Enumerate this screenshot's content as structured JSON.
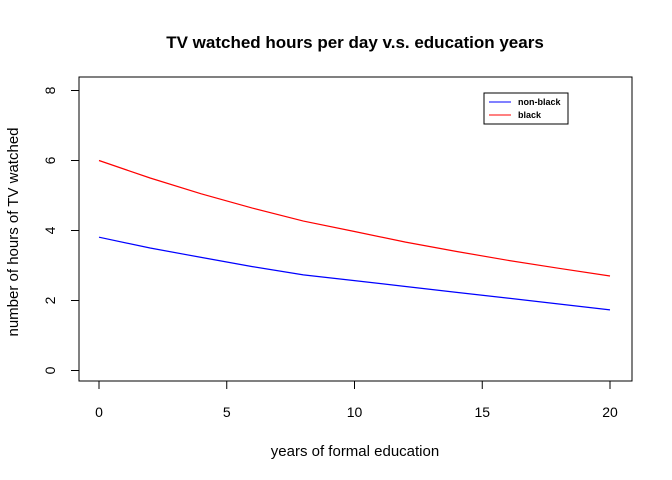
{
  "chart_data": {
    "type": "line",
    "title": "TV watched hours per day v.s. education years",
    "xlabel": "years of formal education",
    "ylabel": "number of hours of TV watched",
    "xlim": [
      0,
      20
    ],
    "ylim": [
      0,
      8
    ],
    "xticks": [
      0,
      5,
      10,
      15,
      20
    ],
    "yticks": [
      0,
      2,
      4,
      6,
      8
    ],
    "grid": false,
    "legend_position": "top-right",
    "series": [
      {
        "name": "non-black",
        "color": "#0000ff",
        "x": [
          0,
          2,
          4,
          6,
          8,
          10,
          12,
          14,
          16,
          18,
          20
        ],
        "y": [
          3.81,
          3.5,
          3.23,
          2.97,
          2.73,
          2.57,
          2.4,
          2.23,
          2.07,
          1.9,
          1.73
        ]
      },
      {
        "name": "black",
        "color": "#ff0000",
        "x": [
          0,
          2,
          4,
          6,
          8,
          10,
          12,
          14,
          16,
          18,
          20
        ],
        "y": [
          6.0,
          5.5,
          5.05,
          4.64,
          4.27,
          3.97,
          3.67,
          3.4,
          3.15,
          2.92,
          2.7
        ]
      }
    ]
  }
}
